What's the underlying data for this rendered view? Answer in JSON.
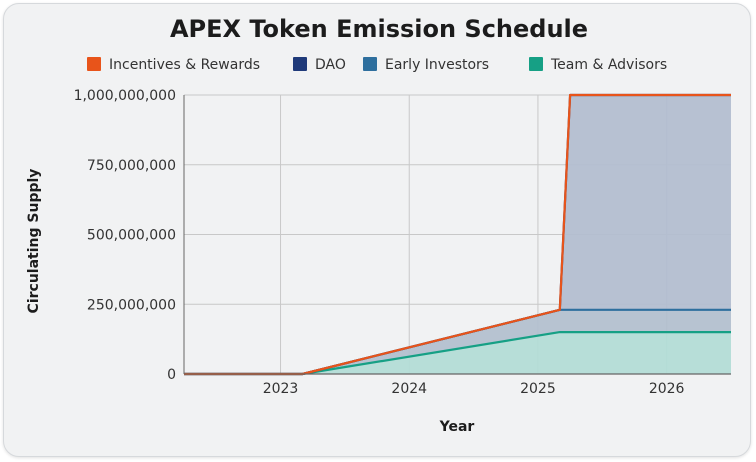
{
  "chart_data": {
    "type": "area",
    "stacked": true,
    "title": "APEX Token Emission Schedule",
    "xlabel": "Year",
    "ylabel": "Circulating Supply",
    "xlim": [
      2022.25,
      2026.5
    ],
    "ylim": [
      0,
      1000000000
    ],
    "x_ticks": [
      2023,
      2024,
      2025,
      2026
    ],
    "x_tick_labels": [
      "2023",
      "2024",
      "2025",
      "2026"
    ],
    "y_ticks": [
      0,
      250000000,
      500000000,
      750000000,
      1000000000
    ],
    "y_tick_labels": [
      "0",
      "250,000,000",
      "500,000,000",
      "750,000,000",
      "1,000,000,000"
    ],
    "grid": true,
    "legend_position": "top",
    "x": [
      2022.25,
      2023.17,
      2025.17,
      2025.25,
      2026.5
    ],
    "series": [
      {
        "name": "Team & Advisors",
        "color": "#16a085",
        "fill": "#b3dcd6",
        "values": [
          0,
          0,
          150000000,
          150000000,
          150000000
        ]
      },
      {
        "name": "Early Investors",
        "color": "#2e6f9e",
        "fill": "#b3c0cf",
        "values": [
          0,
          0,
          80000000,
          80000000,
          80000000
        ]
      },
      {
        "name": "DAO",
        "color": "#1f3a7a",
        "fill": "#b3bed0",
        "values": [
          0,
          0,
          0,
          770000000,
          770000000
        ]
      },
      {
        "name": "Incentives & Rewards",
        "color": "#e8541a",
        "fill": "#b8bccc",
        "values": [
          0,
          0,
          0,
          0,
          0
        ]
      }
    ],
    "legend_order": [
      "Incentives & Rewards",
      "DAO",
      "Early Investors",
      "Team & Advisors"
    ]
  }
}
